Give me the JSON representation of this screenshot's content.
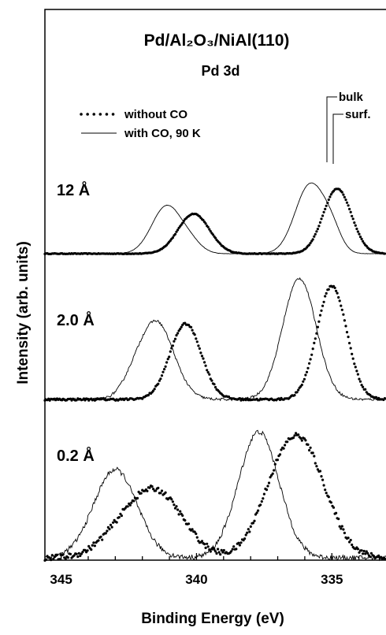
{
  "chart_data": {
    "type": "line",
    "title": "Pd/Al₂O₃/NiAl(110)",
    "subtitle": "Pd 3d",
    "xlabel": "Binding Energy (eV)",
    "ylabel": "Intensity (arb. units)",
    "xlim": [
      345.6,
      333.0
    ],
    "x_reversed": true,
    "xticks": [
      345,
      340,
      335
    ],
    "xtick_labels": [
      "345",
      "340",
      "335"
    ],
    "y_unit": "arb. units",
    "legend": [
      {
        "label": "without CO",
        "style": "dotted"
      },
      {
        "label": "with CO, 90 K",
        "style": "solid"
      }
    ],
    "annotations": [
      "bulk",
      "surf."
    ],
    "panels": [
      {
        "label": "12 Å",
        "series": [
          {
            "name": "without CO",
            "style": "dotted",
            "peaks": [
              {
                "x": 340.1,
                "height": 0.46,
                "width": 0.58
              },
              {
                "x": 334.8,
                "height": 0.75,
                "width": 0.52
              }
            ],
            "noise": 0.004
          },
          {
            "name": "with CO, 90 K",
            "style": "solid",
            "peaks": [
              {
                "x": 341.1,
                "height": 0.55,
                "width": 0.55
              },
              {
                "x": 340.2,
                "height": 0.1,
                "width": 0.4
              },
              {
                "x": 335.8,
                "height": 0.8,
                "width": 0.55
              },
              {
                "x": 335.0,
                "height": 0.2,
                "width": 0.35
              }
            ],
            "noise": 0.002
          }
        ]
      },
      {
        "label": "2.0 Å",
        "series": [
          {
            "name": "without CO",
            "style": "dotted",
            "peaks": [
              {
                "x": 340.4,
                "height": 0.6,
                "width": 0.58
              },
              {
                "x": 335.0,
                "height": 0.9,
                "width": 0.55
              }
            ],
            "noise": 0.008
          },
          {
            "name": "with CO, 90 K",
            "style": "solid",
            "peaks": [
              {
                "x": 341.5,
                "height": 0.62,
                "width": 0.65
              },
              {
                "x": 342.4,
                "height": 0.06,
                "width": 0.4
              },
              {
                "x": 336.2,
                "height": 0.96,
                "width": 0.62
              }
            ],
            "noise": 0.01
          }
        ]
      },
      {
        "label": "0.2 Å",
        "series": [
          {
            "name": "without CO",
            "style": "dotted",
            "peaks": [
              {
                "x": 341.5,
                "height": 0.52,
                "width": 1.0
              },
              {
                "x": 342.9,
                "height": 0.12,
                "width": 0.8
              },
              {
                "x": 336.2,
                "height": 0.92,
                "width": 0.95
              },
              {
                "x": 337.3,
                "height": 0.15,
                "width": 0.7
              }
            ],
            "noise": 0.022
          },
          {
            "name": "with CO, 90 K",
            "style": "solid",
            "peaks": [
              {
                "x": 343.0,
                "height": 0.7,
                "width": 0.8
              },
              {
                "x": 337.7,
                "height": 1.0,
                "width": 0.75
              }
            ],
            "noise": 0.02
          }
        ]
      }
    ]
  }
}
